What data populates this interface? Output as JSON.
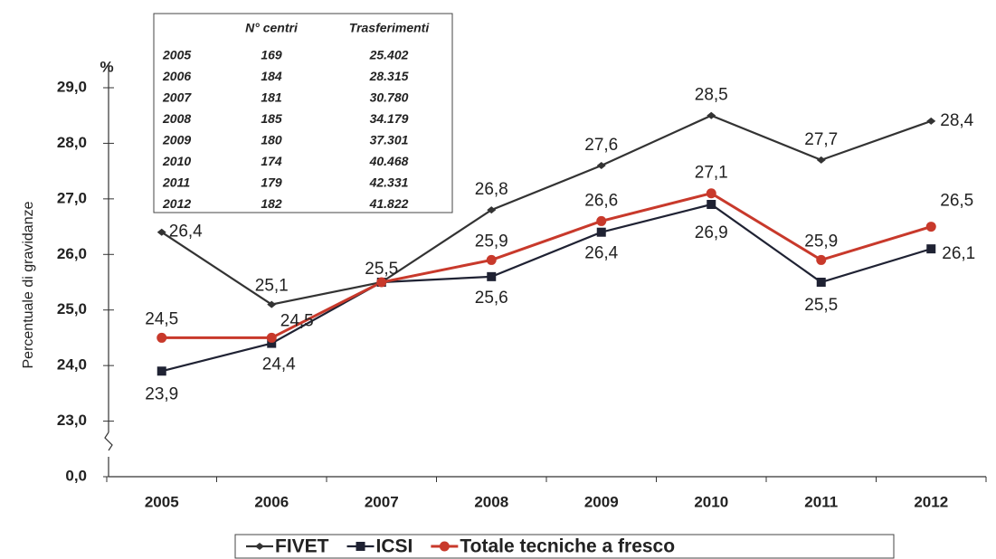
{
  "chart_data": {
    "type": "line",
    "unit": "%",
    "y_label": "Percentuale di gravidanze",
    "categories": [
      "2005",
      "2006",
      "2007",
      "2008",
      "2009",
      "2010",
      "2011",
      "2012"
    ],
    "series": [
      {
        "name": "FIVET",
        "color": "#333333",
        "marker": "diamond",
        "values": [
          26.4,
          25.1,
          25.5,
          26.8,
          27.6,
          28.5,
          27.7,
          28.4
        ],
        "value_labels": [
          "26,4",
          "25,1",
          "25,5",
          "26,8",
          "27,6",
          "28,5",
          "27,7",
          "28,4"
        ]
      },
      {
        "name": "ICSI",
        "color": "#1f2233",
        "marker": "square",
        "values": [
          23.9,
          24.4,
          25.5,
          25.6,
          26.4,
          26.9,
          25.5,
          26.1
        ],
        "value_labels": [
          "23,9",
          "24,4",
          null,
          "25,6",
          "26,4",
          "26,9",
          "25,5",
          "26,1"
        ]
      },
      {
        "name": "Totale tecniche a fresco",
        "color": "#c8392b",
        "marker": "circle",
        "values": [
          24.5,
          24.5,
          25.5,
          25.9,
          26.6,
          27.1,
          25.9,
          26.5
        ],
        "value_labels": [
          "24,5",
          "24,5",
          null,
          "25,9",
          "26,6",
          "27,1",
          "25,9",
          "26,5"
        ]
      }
    ],
    "ylim": [
      23,
      29
    ],
    "axis_break": true,
    "yticks": [
      {
        "value": 0,
        "label": "0,0"
      },
      {
        "value": 23,
        "label": "23,0"
      },
      {
        "value": 24,
        "label": "24,0"
      },
      {
        "value": 25,
        "label": "25,0"
      },
      {
        "value": 26,
        "label": "26,0"
      },
      {
        "value": 27,
        "label": "27,0"
      },
      {
        "value": 28,
        "label": "28,0"
      },
      {
        "value": 29,
        "label": "29,0"
      }
    ],
    "legend": "bottom",
    "table": {
      "columns": [
        "N° centri",
        "Trasferimenti"
      ],
      "rows": [
        [
          "2005",
          "169",
          "25.402"
        ],
        [
          "2006",
          "184",
          "28.315"
        ],
        [
          "2007",
          "181",
          "30.780"
        ],
        [
          "2008",
          "185",
          "34.179"
        ],
        [
          "2009",
          "180",
          "37.301"
        ],
        [
          "2010",
          "174",
          "40.468"
        ],
        [
          "2011",
          "179",
          "42.331"
        ],
        [
          "2012",
          "182",
          "41.822"
        ]
      ]
    }
  }
}
